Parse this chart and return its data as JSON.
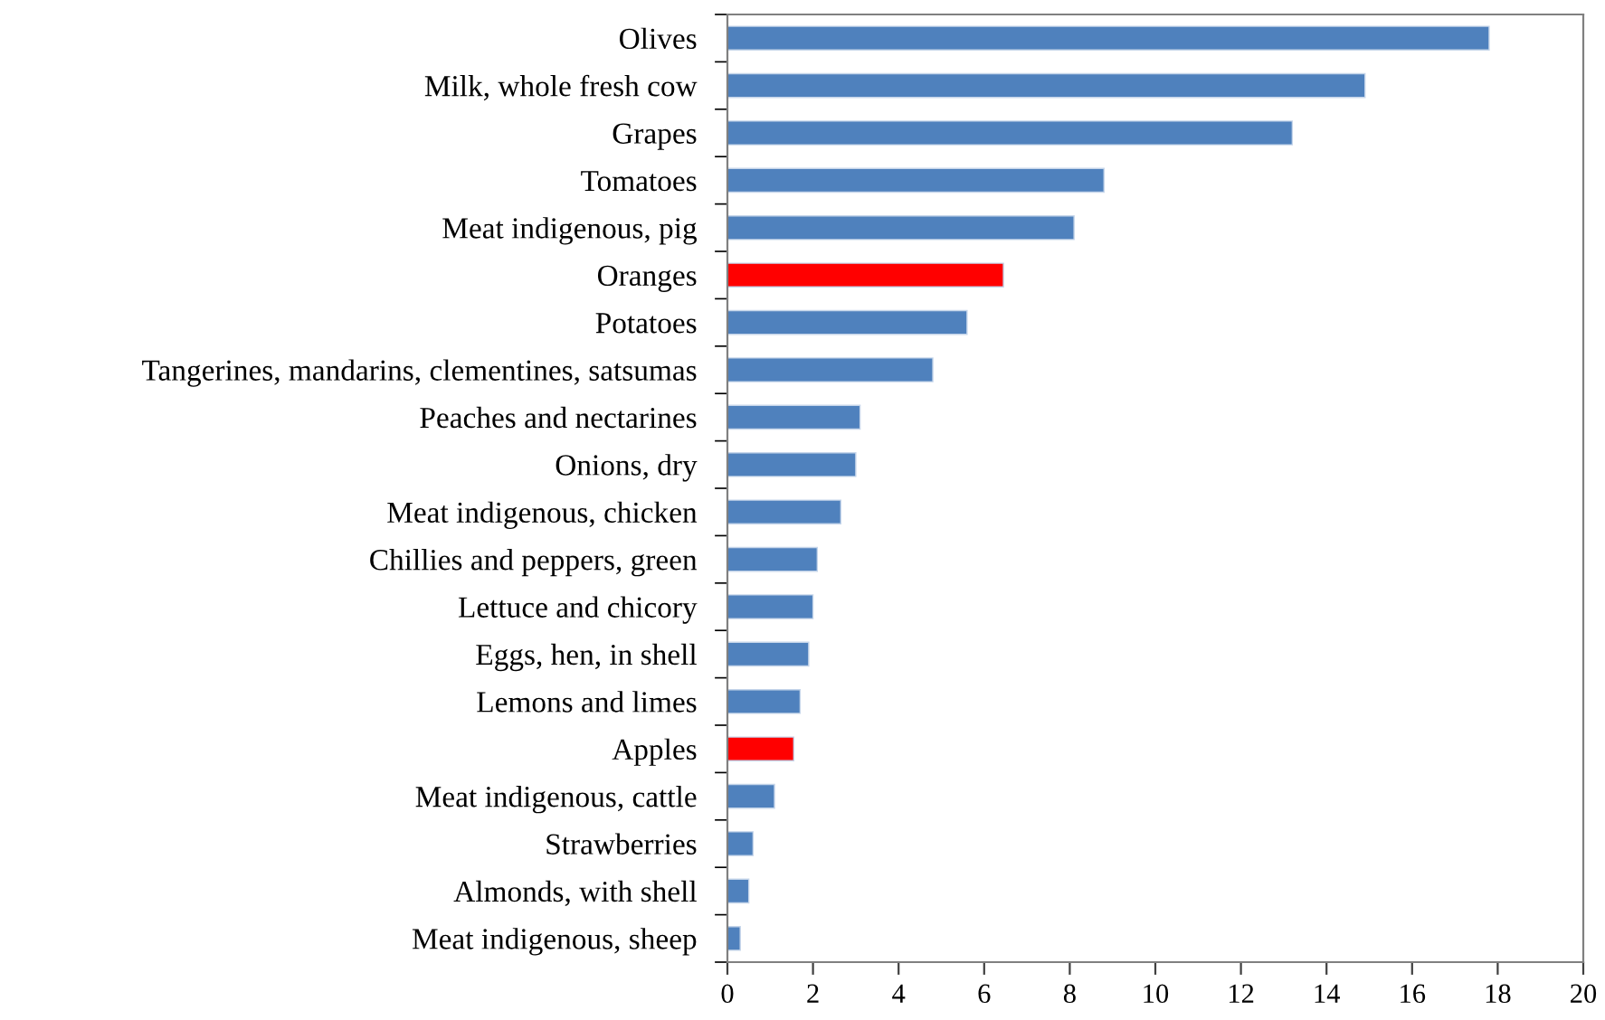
{
  "chart_data": {
    "type": "bar",
    "orientation": "horizontal",
    "categories": [
      "Olives",
      "Milk, whole fresh cow",
      "Grapes",
      "Tomatoes",
      "Meat indigenous, pig",
      "Oranges",
      "Potatoes",
      "Tangerines, mandarins, clementines, satsumas",
      "Peaches and nectarines",
      "Onions, dry",
      "Meat indigenous, chicken",
      "Chillies and peppers, green",
      "Lettuce and chicory",
      "Eggs, hen, in shell",
      "Lemons and limes",
      "Apples",
      "Meat indigenous, cattle",
      "Strawberries",
      "Almonds, with shell",
      "Meat indigenous, sheep"
    ],
    "values": [
      17.8,
      14.9,
      13.2,
      8.8,
      8.1,
      6.45,
      5.6,
      4.8,
      3.1,
      3.0,
      2.65,
      2.1,
      2.0,
      1.9,
      1.7,
      1.55,
      1.1,
      0.6,
      0.5,
      0.3
    ],
    "colors": [
      "#4f81bd",
      "#4f81bd",
      "#4f81bd",
      "#4f81bd",
      "#4f81bd",
      "#ff0000",
      "#4f81bd",
      "#4f81bd",
      "#4f81bd",
      "#4f81bd",
      "#4f81bd",
      "#4f81bd",
      "#4f81bd",
      "#4f81bd",
      "#4f81bd",
      "#ff0000",
      "#4f81bd",
      "#4f81bd",
      "#4f81bd",
      "#4f81bd"
    ],
    "xlim": [
      0,
      20
    ],
    "xticks": [
      0,
      2,
      4,
      6,
      8,
      10,
      12,
      14,
      16,
      18,
      20
    ],
    "grid": false,
    "legend": false
  }
}
